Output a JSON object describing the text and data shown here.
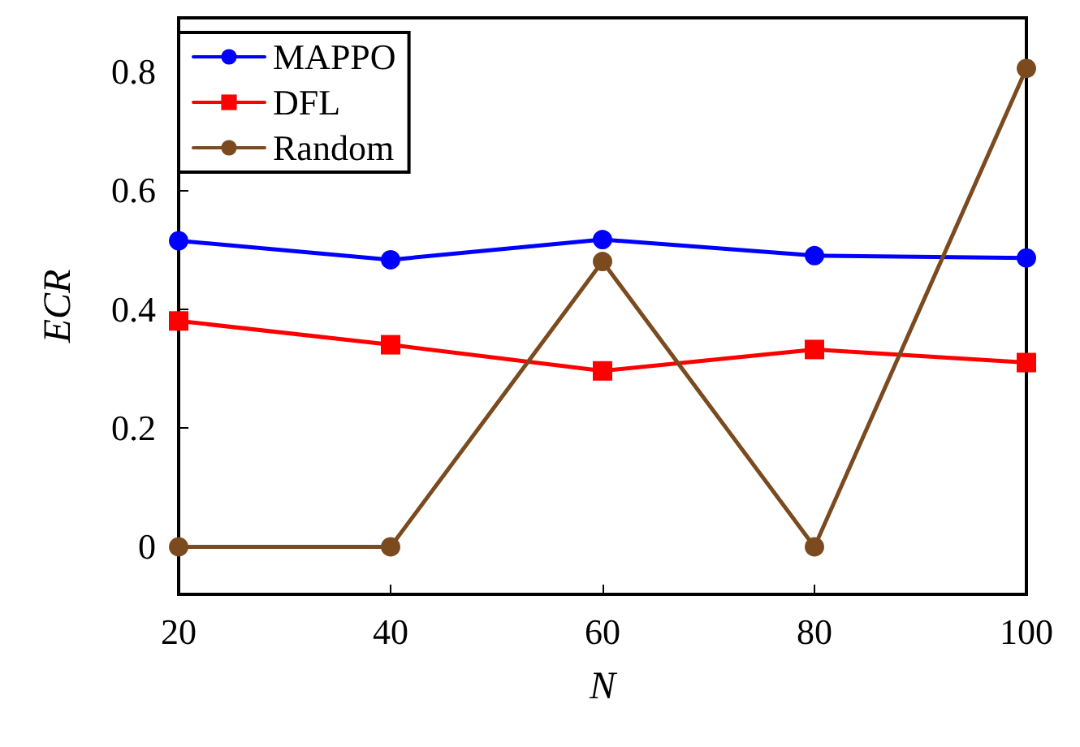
{
  "chart_data": {
    "type": "line",
    "xlabel": "N",
    "ylabel": "ECR",
    "x": [
      20,
      40,
      60,
      80,
      100
    ],
    "series": [
      {
        "name": "MAPPO",
        "color": "#0000ff",
        "marker": "circle",
        "values": [
          0.515,
          0.483,
          0.517,
          0.49,
          0.486
        ]
      },
      {
        "name": "DFL",
        "color": "#ff0000",
        "marker": "square",
        "values": [
          0.38,
          0.34,
          0.296,
          0.332,
          0.31
        ]
      },
      {
        "name": "Random",
        "color": "#7b4a1f",
        "marker": "circle",
        "values": [
          0,
          0,
          0.48,
          0,
          0.805
        ]
      }
    ],
    "xlim": [
      20,
      100
    ],
    "xticks": [
      20,
      40,
      60,
      80,
      100
    ],
    "ylim": [
      -0.08,
      0.89
    ],
    "yticks": [
      0,
      0.2,
      0.4,
      0.6,
      0.8
    ],
    "legend": "top left",
    "grid": false,
    "line_style": "solid"
  }
}
